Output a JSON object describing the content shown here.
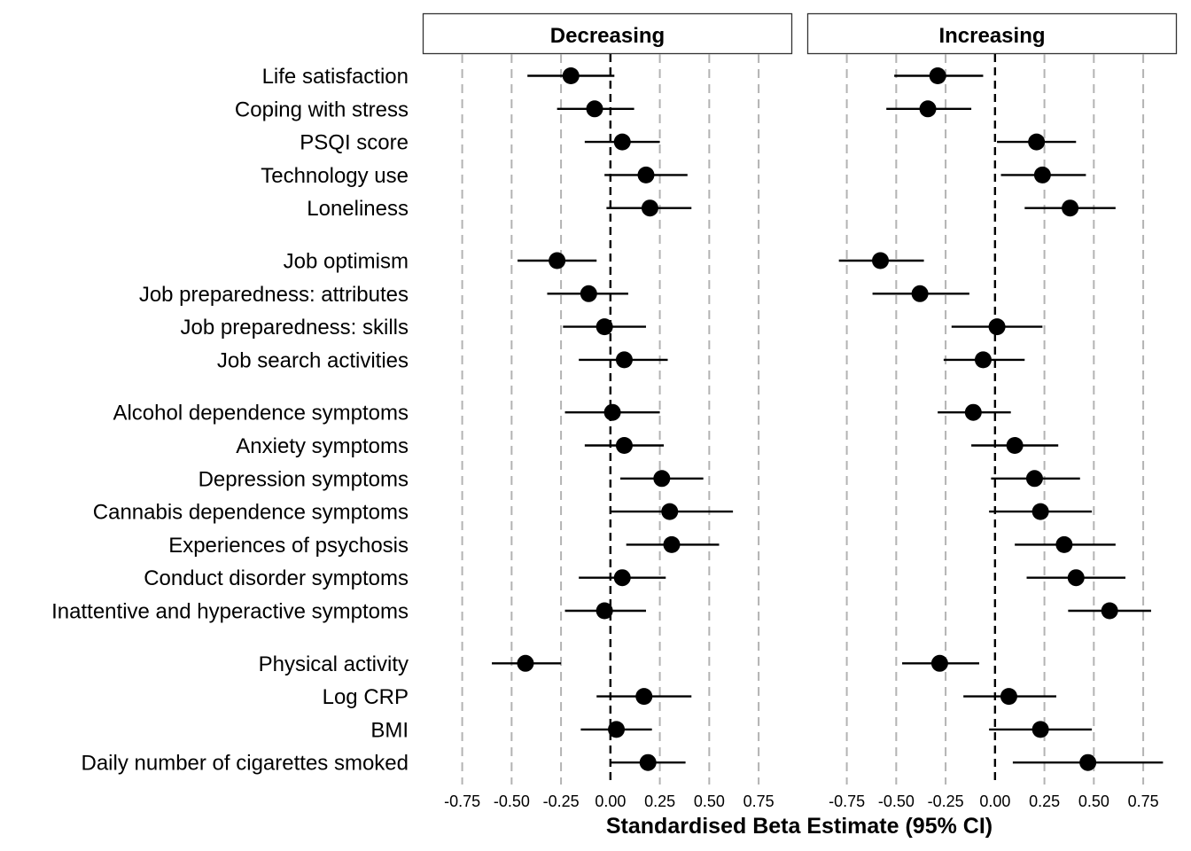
{
  "chart_data": {
    "type": "forest",
    "xlabel": "Standardised Beta Estimate (95% CI)",
    "x_ticks": [
      -0.75,
      -0.5,
      -0.25,
      0.0,
      0.25,
      0.5,
      0.75
    ],
    "x_tick_labels": [
      "-0.75",
      "-0.50",
      "-0.25",
      "0.00",
      "0.25",
      "0.50",
      "0.75"
    ],
    "xlim": [
      -0.95,
      0.92
    ],
    "grid": "vertical dashed at ticks",
    "reference_line": 0,
    "groups": [
      [
        "Life satisfaction",
        "Coping with stress",
        "PSQI score",
        "Technology use",
        "Loneliness"
      ],
      [
        "Job optimism",
        "Job preparedness: attributes",
        "Job preparedness: skills",
        "Job search activities"
      ],
      [
        "Alcohol dependence symptoms",
        "Anxiety symptoms",
        "Depression symptoms",
        "Cannabis dependence symptoms",
        "Experiences of psychosis",
        "Conduct disorder symptoms",
        "Inattentive and hyperactive symptoms"
      ],
      [
        "Physical activity",
        "Log CRP",
        "BMI",
        "Daily number of cigarettes smoked"
      ]
    ],
    "panels": [
      {
        "name": "Decreasing",
        "estimates": {
          "Life satisfaction": [
            -0.2,
            -0.42,
            0.02
          ],
          "Coping with stress": [
            -0.08,
            -0.27,
            0.12
          ],
          "PSQI score": [
            0.06,
            -0.13,
            0.25
          ],
          "Technology use": [
            0.18,
            -0.03,
            0.39
          ],
          "Loneliness": [
            0.2,
            -0.02,
            0.41
          ],
          "Job optimism": [
            -0.27,
            -0.47,
            -0.07
          ],
          "Job preparedness: attributes": [
            -0.11,
            -0.32,
            0.09
          ],
          "Job preparedness: skills": [
            -0.03,
            -0.24,
            0.18
          ],
          "Job search activities": [
            0.07,
            -0.16,
            0.29
          ],
          "Alcohol dependence symptoms": [
            0.01,
            -0.23,
            0.25
          ],
          "Anxiety symptoms": [
            0.07,
            -0.13,
            0.27
          ],
          "Depression symptoms": [
            0.26,
            0.05,
            0.47
          ],
          "Cannabis dependence symptoms": [
            0.3,
            0.0,
            0.62
          ],
          "Experiences of psychosis": [
            0.31,
            0.08,
            0.55
          ],
          "Conduct disorder symptoms": [
            0.06,
            -0.16,
            0.28
          ],
          "Inattentive and hyperactive symptoms": [
            -0.03,
            -0.23,
            0.18
          ],
          "Physical activity": [
            -0.43,
            -0.6,
            -0.25
          ],
          "Log CRP": [
            0.17,
            -0.07,
            0.41
          ],
          "BMI": [
            0.03,
            -0.15,
            0.21
          ],
          "Daily number of cigarettes smoked": [
            0.19,
            0.0,
            0.38
          ]
        }
      },
      {
        "name": "Increasing",
        "estimates": {
          "Life satisfaction": [
            -0.29,
            -0.51,
            -0.06
          ],
          "Coping with stress": [
            -0.34,
            -0.55,
            -0.12
          ],
          "PSQI score": [
            0.21,
            0.01,
            0.41
          ],
          "Technology use": [
            0.24,
            0.03,
            0.46
          ],
          "Loneliness": [
            0.38,
            0.15,
            0.61
          ],
          "Job optimism": [
            -0.58,
            -0.79,
            -0.36
          ],
          "Job preparedness: attributes": [
            -0.38,
            -0.62,
            -0.13
          ],
          "Job preparedness: skills": [
            0.01,
            -0.22,
            0.24
          ],
          "Job search activities": [
            -0.06,
            -0.26,
            0.15
          ],
          "Alcohol dependence symptoms": [
            -0.11,
            -0.29,
            0.08
          ],
          "Anxiety symptoms": [
            0.1,
            -0.12,
            0.32
          ],
          "Depression symptoms": [
            0.2,
            -0.02,
            0.43
          ],
          "Cannabis dependence symptoms": [
            0.23,
            -0.03,
            0.49
          ],
          "Experiences of psychosis": [
            0.35,
            0.1,
            0.61
          ],
          "Conduct disorder symptoms": [
            0.41,
            0.16,
            0.66
          ],
          "Inattentive and hyperactive symptoms": [
            0.58,
            0.37,
            0.79
          ],
          "Physical activity": [
            -0.28,
            -0.47,
            -0.08
          ],
          "Log CRP": [
            0.07,
            -0.16,
            0.31
          ],
          "BMI": [
            0.23,
            -0.03,
            0.49
          ],
          "Daily number of cigarettes smoked": [
            0.47,
            0.09,
            0.85
          ]
        }
      }
    ]
  }
}
